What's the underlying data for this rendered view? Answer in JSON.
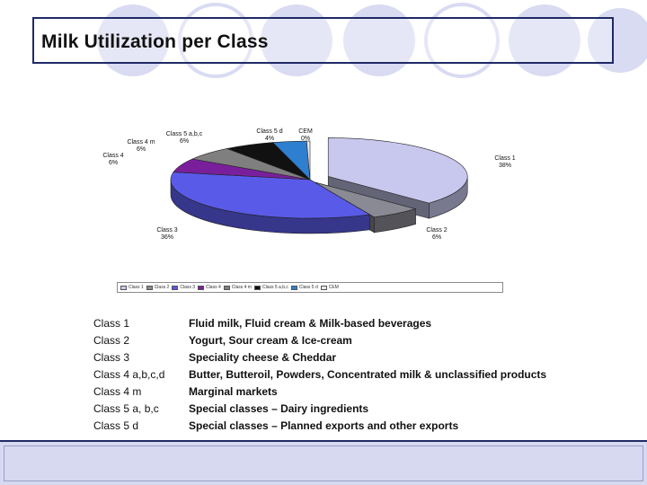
{
  "title": "Milk Utilization per Class",
  "chart_data": {
    "type": "pie",
    "title": "",
    "slices": [
      {
        "label": "Class 1",
        "value": 38,
        "display": "38%",
        "color": "#c8c8ee"
      },
      {
        "label": "Class 2",
        "value": 6,
        "display": "6%",
        "color": "#8a8a95"
      },
      {
        "label": "Class 3",
        "value": 36,
        "display": "36%",
        "color": "#5a5ae8"
      },
      {
        "label": "Class 4",
        "value": 6,
        "display": "6%",
        "color": "#7a1f9c"
      },
      {
        "label": "Class 4 m",
        "value": 6,
        "display": "6%",
        "color": "#7f7f7f"
      },
      {
        "label": "Class 5 a,b,c",
        "value": 6,
        "display": "6%",
        "color": "#111111"
      },
      {
        "label": "Class 5 d",
        "value": 4,
        "display": "4%",
        "color": "#2f7fd0"
      },
      {
        "label": "CEM",
        "value": 0.4,
        "display": "0%",
        "color": "#e8e8e8"
      }
    ],
    "legend": {
      "position": "bottom",
      "entries": [
        "Class 1",
        "Class 2",
        "Class 3",
        "Class 4",
        "Class 4 m",
        "Class 5 a,b,c",
        "Class 5 d",
        "CEM"
      ]
    }
  },
  "classes": [
    {
      "name": "Class 1",
      "description": "Fluid milk, Fluid cream & Milk-based beverages"
    },
    {
      "name": "Class 2",
      "description": "Yogurt, Sour cream & Ice-cream"
    },
    {
      "name": "Class 3",
      "description": "Speciality cheese & Cheddar"
    },
    {
      "name": "Class 4 a,b,c,d",
      "description": "Butter, Butteroil, Powders, Concentrated milk & unclassified products"
    },
    {
      "name": "Class 4 m",
      "description": "Marginal markets"
    },
    {
      "name": "Class 5 a, b,c",
      "description": "Special classes – Dairy ingredients"
    },
    {
      "name": "Class 5 d",
      "description": "Special classes – Planned exports and other exports"
    }
  ],
  "colors": {
    "title_border": "#1f2a66",
    "circle_fill": "#d9dbf2",
    "footer_fill": "#d6d9f0"
  }
}
